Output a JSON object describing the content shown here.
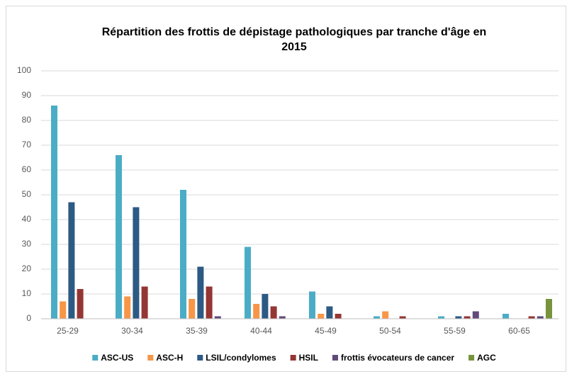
{
  "chart_data": {
    "type": "bar",
    "title": [
      "Répartition des frottis de dépistage pathologiques par tranche d'âge en",
      "2015"
    ],
    "categories": [
      "25-29",
      "30-34",
      "35-39",
      "40-44",
      "45-49",
      "50-54",
      "55-59",
      "60-65"
    ],
    "series": [
      {
        "name": "ASC-US",
        "color": "#4bacc6",
        "values": [
          86,
          66,
          52,
          29,
          11,
          1,
          1,
          2
        ]
      },
      {
        "name": "ASC-H",
        "color": "#f79646",
        "values": [
          7,
          9,
          8,
          6,
          2,
          3,
          0,
          0
        ]
      },
      {
        "name": "LSIL/condylomes",
        "color": "#2c5a84",
        "values": [
          47,
          45,
          21,
          10,
          5,
          0,
          1,
          0
        ]
      },
      {
        "name": "HSIL",
        "color": "#943634",
        "values": [
          12,
          13,
          13,
          5,
          2,
          1,
          1,
          1
        ]
      },
      {
        "name": "frottis évocateurs de cancer",
        "color": "#604a7b",
        "values": [
          0,
          0,
          1,
          1,
          0,
          0,
          3,
          1
        ]
      },
      {
        "name": "AGC",
        "color": "#77933c",
        "values": [
          0,
          0,
          0,
          0,
          0,
          0,
          0,
          8
        ]
      }
    ],
    "ylim": [
      0,
      100
    ],
    "yticks": [
      0,
      10,
      20,
      30,
      40,
      50,
      60,
      70,
      80,
      90,
      100
    ],
    "grid": true,
    "legend": "bottom"
  }
}
